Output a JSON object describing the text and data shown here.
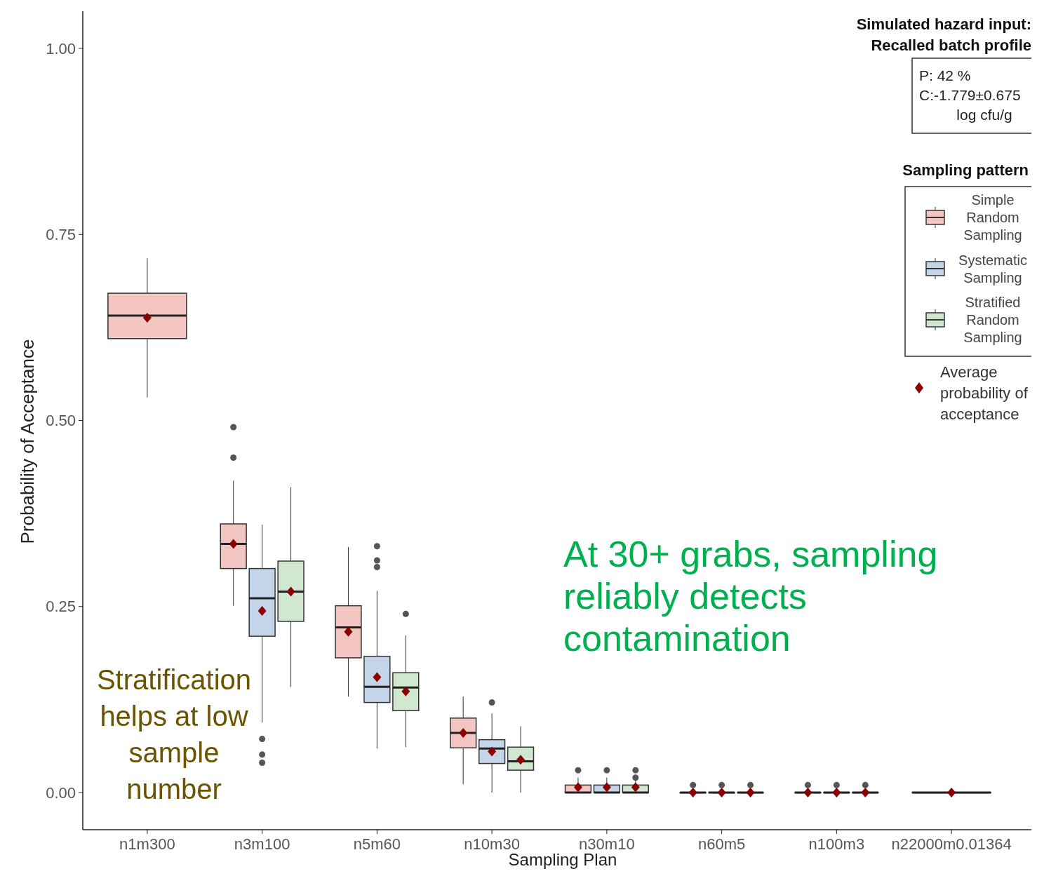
{
  "chart_data": {
    "type": "box",
    "xlabel": "Sampling Plan",
    "ylabel": "Probability of Acceptance",
    "categories": [
      "n1m300",
      "n3m100",
      "n5m60",
      "n10m30",
      "n30m10",
      "n60m5",
      "n100m3",
      "n22000m0.01364"
    ],
    "ylim": [
      -0.05,
      1.05
    ],
    "yticks": [
      {
        "value": 0,
        "label": "0.00"
      },
      {
        "value": 0.25,
        "label": "0.25"
      },
      {
        "value": 0.5,
        "label": "0.50"
      },
      {
        "value": 0.75,
        "label": "0.75"
      },
      {
        "value": 1,
        "label": "1.00"
      }
    ],
    "grid": false,
    "legend": "top right",
    "legend_title": "Sampling pattern",
    "series": [
      {
        "name": "Simple Random Sampling",
        "color": "#f4c6c2",
        "boxes": [
          {
            "low": 0.531,
            "q1": 0.61,
            "median": 0.641,
            "q3": 0.671,
            "high": 0.718,
            "mean": 0.638
          },
          {
            "low": 0.251,
            "q1": 0.301,
            "median": 0.334,
            "q3": 0.361,
            "high": 0.419,
            "mean": 0.334,
            "outliers": [
              0.45,
              0.491
            ]
          },
          {
            "low": 0.129,
            "q1": 0.181,
            "median": 0.222,
            "q3": 0.251,
            "high": 0.33,
            "mean": 0.216
          },
          {
            "low": 0.011,
            "q1": 0.06,
            "median": 0.08,
            "q3": 0.1,
            "high": 0.129,
            "mean": 0.08
          },
          {
            "low": 0,
            "q1": 0,
            "median": 0,
            "q3": 0.01,
            "high": 0.02,
            "mean": 0.007,
            "outliers": [
              0.03
            ]
          },
          {
            "low": 0,
            "q1": 0,
            "median": 0,
            "q3": 0,
            "high": 0,
            "mean": 0,
            "outliers": [
              0.01
            ]
          },
          {
            "low": 0,
            "q1": 0,
            "median": 0,
            "q3": 0,
            "high": 0,
            "mean": 0,
            "outliers": [
              0.01
            ]
          },
          {
            "low": 0,
            "q1": 0,
            "median": 0,
            "q3": 0,
            "high": 0,
            "mean": 0
          }
        ]
      },
      {
        "name": "Systematic Sampling",
        "color": "#c4d5ea",
        "boxes": [
          null,
          {
            "low": 0.094,
            "q1": 0.21,
            "median": 0.261,
            "q3": 0.301,
            "high": 0.36,
            "mean": 0.244,
            "outliers": [
              0.04,
              0.051,
              0.072
            ]
          },
          {
            "low": 0.059,
            "q1": 0.121,
            "median": 0.142,
            "q3": 0.183,
            "high": 0.271,
            "mean": 0.155,
            "outliers": [
              0.303,
              0.312,
              0.331
            ]
          },
          {
            "low": 0,
            "q1": 0.039,
            "median": 0.059,
            "q3": 0.071,
            "high": 0.106,
            "mean": 0.055,
            "outliers": [
              0.121
            ]
          },
          {
            "low": 0,
            "q1": 0,
            "median": 0,
            "q3": 0.01,
            "high": 0.02,
            "mean": 0.007,
            "outliers": [
              0.03
            ]
          },
          {
            "low": 0,
            "q1": 0,
            "median": 0,
            "q3": 0,
            "high": 0,
            "mean": 0,
            "outliers": [
              0.01
            ]
          },
          {
            "low": 0,
            "q1": 0,
            "median": 0,
            "q3": 0,
            "high": 0,
            "mean": 0,
            "outliers": [
              0.01
            ]
          },
          null
        ]
      },
      {
        "name": "Stratified Random Sampling",
        "color": "#cfe8cf",
        "boxes": [
          null,
          {
            "low": 0.142,
            "q1": 0.23,
            "median": 0.27,
            "q3": 0.311,
            "high": 0.41,
            "mean": 0.27
          },
          {
            "low": 0.061,
            "q1": 0.11,
            "median": 0.141,
            "q3": 0.161,
            "high": 0.211,
            "mean": 0.136,
            "outliers": [
              0.24
            ]
          },
          {
            "low": 0,
            "q1": 0.03,
            "median": 0.042,
            "q3": 0.061,
            "high": 0.089,
            "mean": 0.044
          },
          {
            "low": 0,
            "q1": 0,
            "median": 0,
            "q3": 0.01,
            "high": 0.02,
            "mean": 0.007,
            "outliers": [
              0.02,
              0.03
            ]
          },
          {
            "low": 0,
            "q1": 0,
            "median": 0,
            "q3": 0,
            "high": 0,
            "mean": 0,
            "outliers": [
              0.01
            ]
          },
          {
            "low": 0,
            "q1": 0,
            "median": 0,
            "q3": 0,
            "high": 0,
            "mean": 0,
            "outliers": [
              0.01
            ]
          },
          null
        ]
      }
    ],
    "annotations": [
      "Simulated hazard input: Recalled batch profile",
      "P: 42 %",
      "C:-1.779±0.675 log cfu/g",
      "Average probability of acceptance",
      "At 30+ grabs, sampling reliably detects contamination",
      "Stratification helps at low sample number"
    ]
  }
}
